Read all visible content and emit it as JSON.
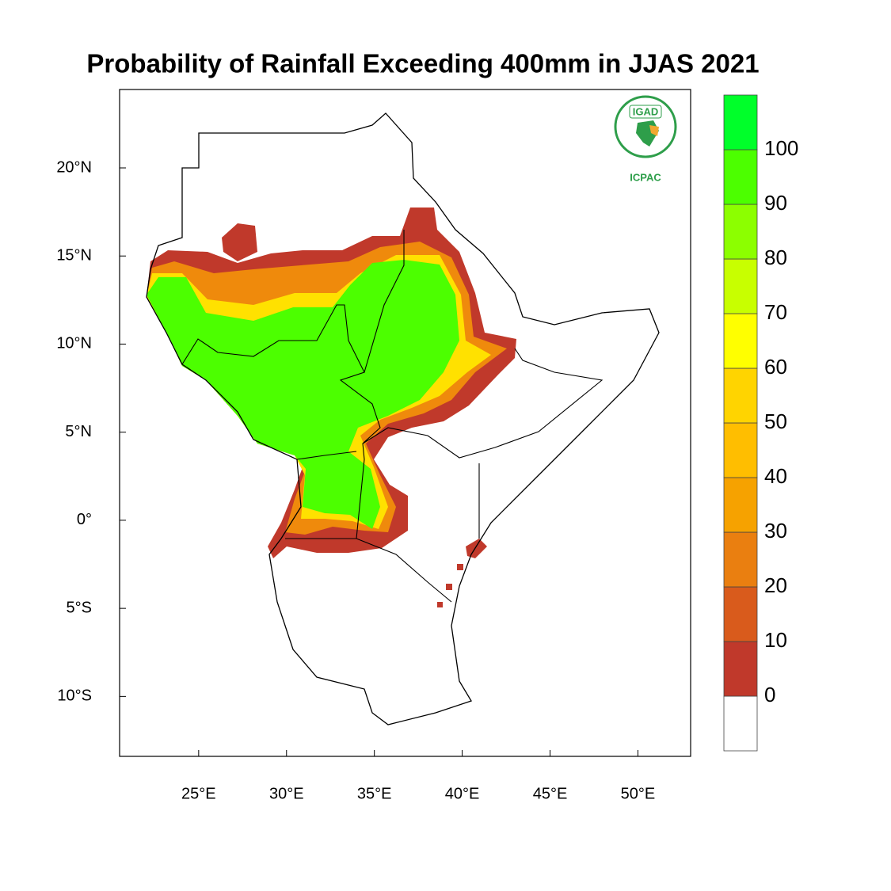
{
  "map": {
    "title": "Probability of Rainfall Exceeding 400mm in JJAS 2021",
    "xlim": [
      20.5,
      53.0
    ],
    "ylim": [
      -13.4,
      24.45
    ],
    "xticks": [
      {
        "value": 25,
        "label": "25°E"
      },
      {
        "value": 30,
        "label": "30°E"
      },
      {
        "value": 35,
        "label": "35°E"
      },
      {
        "value": 40,
        "label": "40°E"
      },
      {
        "value": 45,
        "label": "45°E"
      },
      {
        "value": 50,
        "label": "50°E"
      }
    ],
    "yticks": [
      {
        "value": 20,
        "label": "20°N"
      },
      {
        "value": 15,
        "label": "15°N"
      },
      {
        "value": 10,
        "label": "10°N"
      },
      {
        "value": 5,
        "label": "5°N"
      },
      {
        "value": 0,
        "label": "0°"
      },
      {
        "value": -5,
        "label": "5°S"
      },
      {
        "value": -10,
        "label": "10°S"
      }
    ],
    "colorbar": {
      "levels": [
        0,
        10,
        20,
        30,
        40,
        50,
        60,
        70,
        80,
        90,
        100
      ],
      "colors": [
        "#ffffff",
        "#c0392b",
        "#d95b1c",
        "#ea7f10",
        "#f6a200",
        "#ffbe00",
        "#ffd400",
        "#ffff00",
        "#c8ff00",
        "#8cff00",
        "#4cff00",
        "#00ff2a"
      ]
    },
    "logo": {
      "name": "IGAD",
      "center": "ICPAC"
    }
  }
}
